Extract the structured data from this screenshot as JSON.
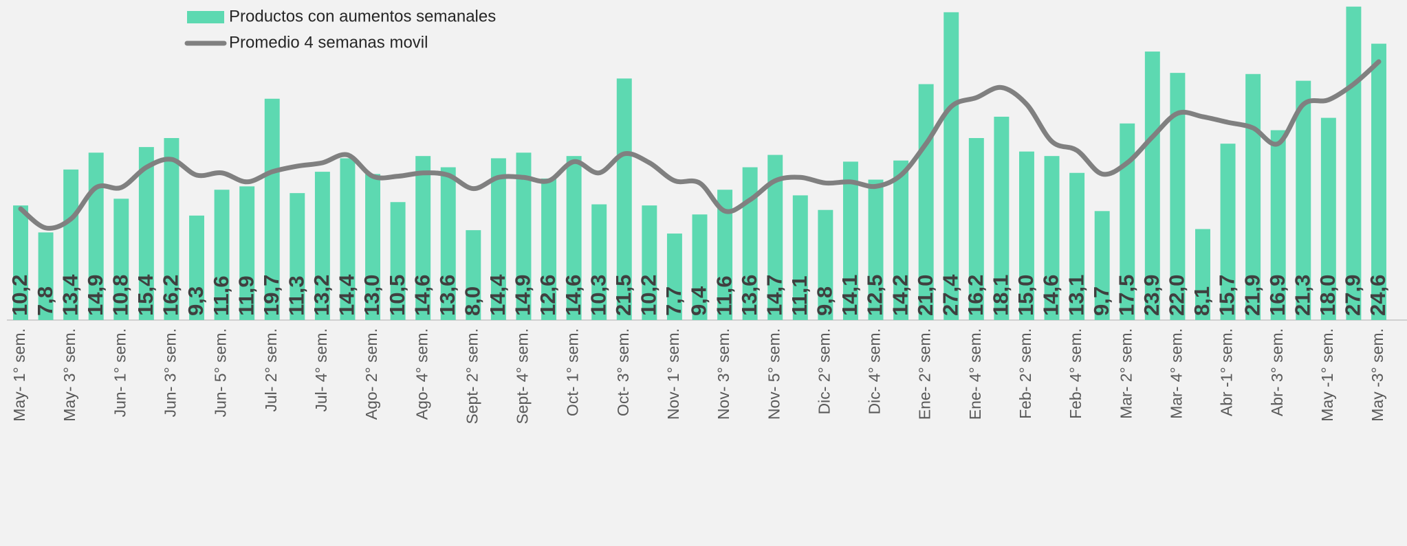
{
  "chart_data": {
    "type": "bar",
    "categories": [
      "May- 1° sem.",
      null,
      "May- 3° sem.",
      null,
      "Jun- 1° sem.",
      null,
      "Jun- 3° sem.",
      null,
      "Jun- 5° sem.",
      null,
      "Jul- 2° sem.",
      null,
      "Jul- 4° sem.",
      null,
      "Ago- 2° sem.",
      null,
      "Ago- 4° sem.",
      null,
      "Sept- 2° sem.",
      null,
      "Sept- 4° sem.",
      null,
      "Oct- 1° sem.",
      null,
      "Oct- 3° sem.",
      null,
      "Nov- 1° sem.",
      null,
      "Nov- 3° sem.",
      null,
      "Nov- 5° sem.",
      null,
      "Dic- 2° sem.",
      null,
      "Dic- 4° sem.",
      null,
      "Ene- 2° sem.",
      null,
      "Ene- 4° sem.",
      null,
      "Feb- 2° sem.",
      null,
      "Feb- 4° sem.",
      null,
      "Mar- 2° sem.",
      null,
      "Mar- 4° sem.",
      null,
      "Abr -1° sem.",
      null,
      "Abr- 3° sem.",
      null,
      "May -1° sem.",
      null,
      "May -3° sem."
    ],
    "ylim": [
      0,
      28
    ],
    "series": [
      {
        "name": "Productos con aumentos semanales",
        "type": "bar",
        "color": "#5dd9b1",
        "values": [
          10.2,
          7.8,
          13.4,
          14.9,
          10.8,
          15.4,
          16.2,
          9.3,
          11.6,
          11.9,
          19.7,
          11.3,
          13.2,
          14.4,
          13.0,
          10.5,
          14.6,
          13.6,
          8.0,
          14.4,
          14.9,
          12.6,
          14.6,
          10.3,
          21.5,
          10.2,
          7.7,
          9.4,
          11.6,
          13.6,
          14.7,
          11.1,
          9.8,
          14.1,
          12.5,
          14.2,
          21.0,
          27.4,
          16.2,
          18.1,
          15.0,
          14.6,
          13.1,
          9.7,
          17.5,
          23.9,
          22.0,
          8.1,
          15.7,
          21.9,
          16.9,
          21.3,
          18.0,
          27.9,
          24.6
        ],
        "value_labels": [
          "10,2",
          "7,8",
          "13,4",
          "14,9",
          "10,8",
          "15,4",
          "16,2",
          "9,3",
          "11,6",
          "11,9",
          "19,7",
          "11,3",
          "13,2",
          "14,4",
          "13,0",
          "10,5",
          "14,6",
          "13,6",
          "8,0",
          "14,4",
          "14,9",
          "12,6",
          "14,6",
          "10,3",
          "21,5",
          "10,2",
          "7,7",
          "9,4",
          "11,6",
          "13,6",
          "14,7",
          "11,1",
          "9,8",
          "14,1",
          "12,5",
          "14,2",
          "21,0",
          "27,4",
          "16,2",
          "18,1",
          "15,0",
          "14,6",
          "13,1",
          "9,7",
          "17,5",
          "23,9",
          "22,0",
          "8,1",
          "15,7",
          "21,9",
          "16,9",
          "21,3",
          "18,0",
          "27,9",
          "24,6"
        ]
      },
      {
        "name": "Promedio 4 semanas movil",
        "type": "line",
        "color": "#808080",
        "values": [
          9.9,
          8.2,
          9.0,
          11.8,
          11.8,
          13.6,
          14.3,
          12.9,
          13.1,
          12.3,
          13.2,
          13.7,
          14.0,
          14.7,
          12.8,
          12.8,
          13.1,
          12.9,
          11.7,
          12.7,
          12.7,
          12.4,
          14.1,
          13.1,
          14.8,
          14.0,
          12.4,
          12.2,
          9.7,
          10.7,
          12.4,
          12.7,
          12.2,
          12.3,
          11.9,
          12.9,
          15.7,
          19.0,
          19.8,
          20.7,
          19.2,
          15.9,
          15.1,
          13.0,
          14.0,
          16.3,
          18.4,
          18.1,
          17.6,
          17.1,
          15.7,
          19.2,
          19.6,
          21.0,
          23.0
        ]
      }
    ]
  }
}
